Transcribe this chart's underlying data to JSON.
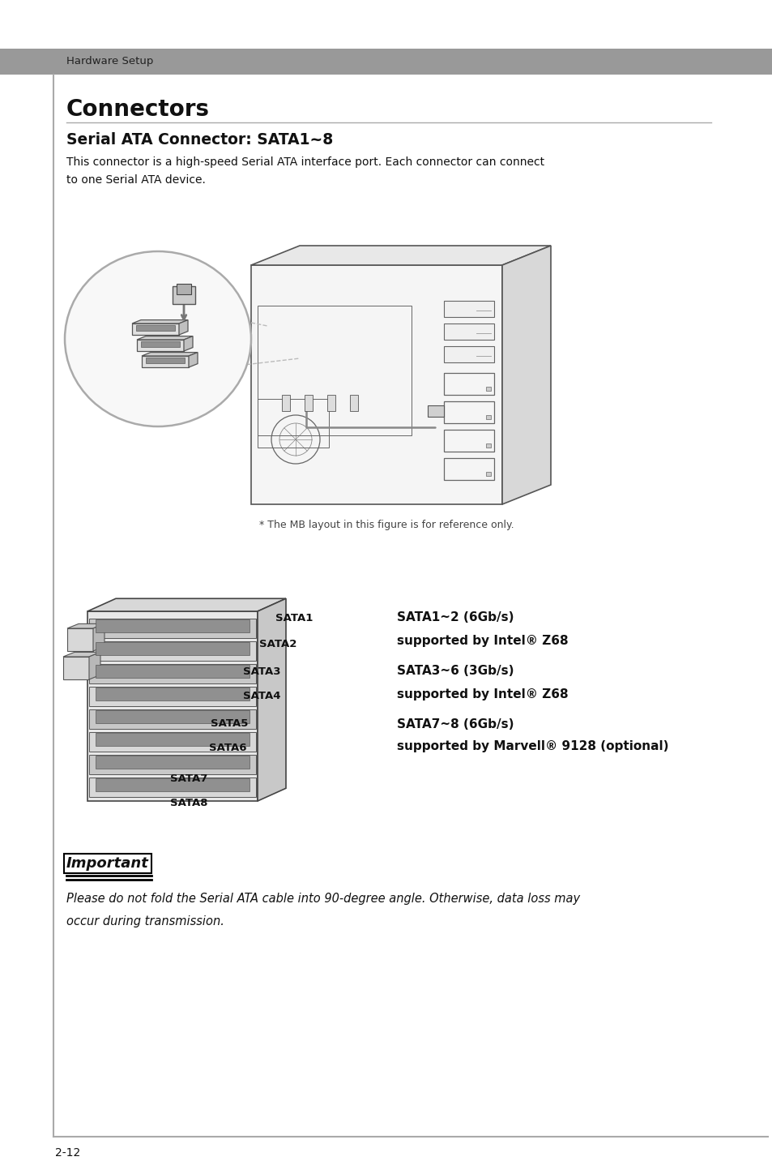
{
  "bg_color": "#ffffff",
  "header_bg": "#999999",
  "header_text": "Hardware Setup",
  "title": "Connectors",
  "section_title": "Serial ATA Connector: SATA1~8",
  "body_text_lines": [
    "This connector is a high-speed Serial ATA interface port. Each connector can connect",
    "to one Serial ATA device."
  ],
  "figure_caption": "* The MB layout in this figure is for reference only.",
  "sata_port_labels": [
    {
      "label": "SATA1",
      "ix": 340,
      "iy": 762
    },
    {
      "label": "SATA2",
      "ix": 320,
      "iy": 795
    },
    {
      "label": "SATA3",
      "ix": 300,
      "iy": 828
    },
    {
      "label": "SATA4",
      "ix": 300,
      "iy": 858
    },
    {
      "label": "SATA5",
      "ix": 260,
      "iy": 893
    },
    {
      "label": "SATA6",
      "ix": 258,
      "iy": 923
    },
    {
      "label": "SATA7",
      "ix": 210,
      "iy": 960
    },
    {
      "label": "SATA8",
      "ix": 210,
      "iy": 990
    }
  ],
  "spec_groups": [
    {
      "title": "SATA1~2 (6Gb/s)",
      "sub": "supported by Intel® Z68",
      "iy_title": 762,
      "iy_sub": 790
    },
    {
      "title": "SATA3~6 (3Gb/s)",
      "sub": "supported by Intel® Z68",
      "iy_title": 828,
      "iy_sub": 856
    },
    {
      "title": "SATA7~8 (6Gb/s)",
      "sub": "supported by Marvell® 9128 (optional)",
      "iy_title": 893,
      "iy_sub": 921
    }
  ],
  "important_label": "Important",
  "important_body": [
    "Please do not fold the Serial ATA cable into 90-degree angle. Otherwise, data loss may",
    "occur during transmission."
  ],
  "page_number": "2-12",
  "text_color": "#111111",
  "border_color": "#aaaaaa",
  "header_text_color": "#222222"
}
